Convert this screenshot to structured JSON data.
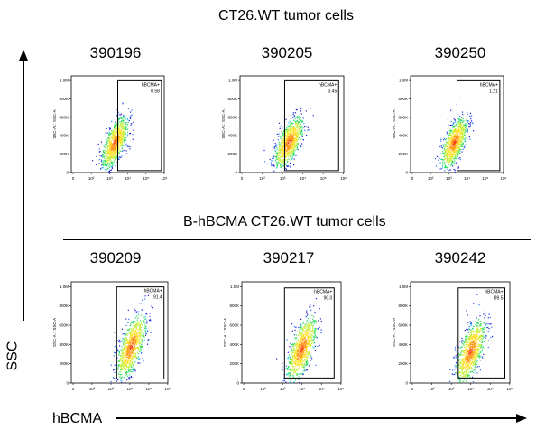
{
  "group_titles": [
    "CT26.WT tumor cells",
    "B-hBCMA CT26.WT tumor cells"
  ],
  "axis_labels": {
    "y": "SSC",
    "x": "hBCMA"
  },
  "density_palette": [
    "#1f1fd6",
    "#2f6bff",
    "#19c8ff",
    "#2fdc62",
    "#c6f03a",
    "#ffe133",
    "#ff9a1f",
    "#ff3b18"
  ],
  "plot_axis": {
    "ylabel": "SSC-A :: SSC-A",
    "y_ticks": [
      "0",
      "200K",
      "400K",
      "600K",
      "800K",
      "1.0M"
    ],
    "x_ticks": [
      "0",
      "10²",
      "10³",
      "10⁴",
      "10⁵",
      "10⁶"
    ]
  },
  "chart_data": [
    {
      "type": "scatter",
      "title": "390196",
      "gate": "hBCMA+",
      "gate_value": "0.58",
      "group": "CT26.WT tumor cells",
      "cluster_center": [
        2.8,
        330
      ],
      "positive_pct": 0.58
    },
    {
      "type": "scatter",
      "title": "390205",
      "gate": "hBCMA+",
      "gate_value": "0.45",
      "group": "CT26.WT tumor cells",
      "cluster_center": [
        2.8,
        330
      ],
      "positive_pct": 0.45
    },
    {
      "type": "scatter",
      "title": "390250",
      "gate": "hBCMA+",
      "gate_value": "1.21",
      "group": "CT26.WT tumor cells",
      "cluster_center": [
        2.8,
        330
      ],
      "positive_pct": 1.21
    },
    {
      "type": "scatter",
      "title": "390209",
      "gate": "hBCMA+",
      "gate_value": "91.4",
      "group": "B-hBCMA CT26.WT tumor cells",
      "cluster_center": [
        3.7,
        380
      ],
      "positive_pct": 91.4
    },
    {
      "type": "scatter",
      "title": "390217",
      "gate": "hBCMA+",
      "gate_value": "90.0",
      "group": "B-hBCMA CT26.WT tumor cells",
      "cluster_center": [
        3.6,
        360
      ],
      "positive_pct": 90.0
    },
    {
      "type": "scatter",
      "title": "390242",
      "gate": "hBCMA+",
      "gate_value": "89.5",
      "group": "B-hBCMA CT26.WT tumor cells",
      "cluster_center": [
        3.6,
        330
      ],
      "positive_pct": 89.5
    }
  ]
}
